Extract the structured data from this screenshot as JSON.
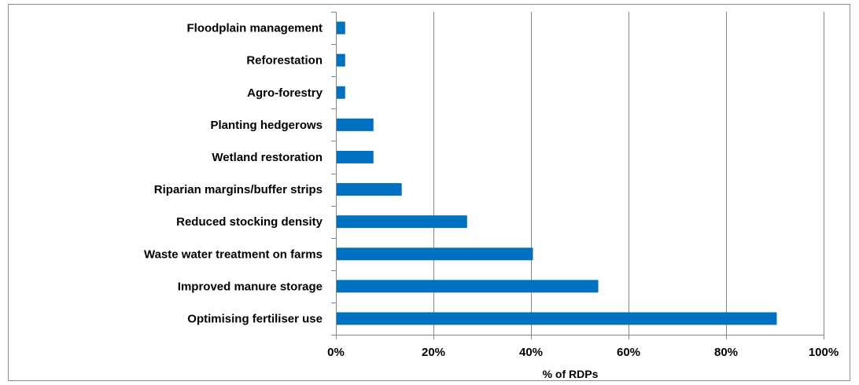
{
  "chart_data": {
    "type": "bar",
    "orientation": "horizontal",
    "title": "",
    "xlabel": "% of RDPs",
    "ylabel": "",
    "categories": [
      "Optimising fertiliser use",
      "Improved manure storage",
      "Waste water treatment on farms",
      "Reduced stocking density",
      "Riparian margins/buffer strips",
      "Wetland restoration",
      "Planting hedgerows",
      "Agro-forestry",
      "Reforestation",
      "Floodplain management"
    ],
    "values": [
      90.4,
      53.8,
      40.4,
      26.9,
      13.5,
      7.7,
      7.7,
      1.9,
      1.9,
      1.9
    ],
    "xlim": [
      0,
      100
    ],
    "xticks": [
      0,
      20,
      40,
      60,
      80,
      100
    ],
    "xtick_labels": [
      "0%",
      "20%",
      "40%",
      "60%",
      "80%",
      "100%"
    ],
    "grid": "vertical",
    "legend": "none",
    "bar_color": "#0070c0",
    "gridline_color": "#868686"
  }
}
